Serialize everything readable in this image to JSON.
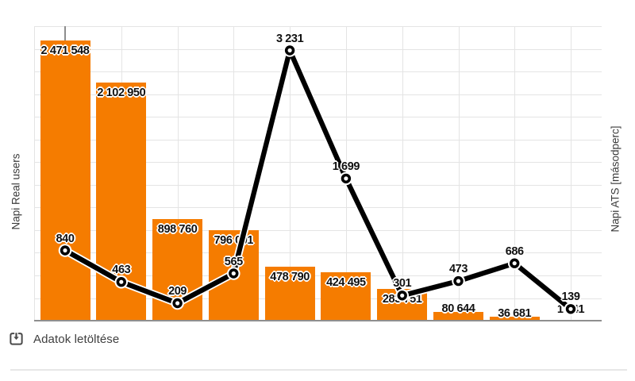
{
  "chart": {
    "left_axis_title": "Napi Real users",
    "right_axis_title": "Napi ATS [másodperc]",
    "download_label": "Adatok letöltése",
    "colors": {
      "bar": "#F57C00",
      "line": "#000000",
      "grid": "#e4e4e4",
      "axis_line": "#8f8f8f",
      "label_text": "#111111",
      "muted_text": "#3f3f3f"
    }
  },
  "chart_data": {
    "type": "bar",
    "combo": true,
    "x_count": 10,
    "categories": [
      "",
      "",
      "",
      "",
      "",
      "",
      "",
      "",
      "",
      ""
    ],
    "series": [
      {
        "name": "Napi Real users",
        "kind": "bar",
        "axis": "left",
        "color": "#F57C00",
        "values": [
          2471548,
          2102950,
          898760,
          796001,
          478790,
          424495,
          283751,
          80644,
          36681,
          1941
        ],
        "labels": [
          "2 471 548",
          "2 102 950",
          "898 760",
          "796 001",
          "478 790",
          "424 495",
          "283 751",
          "80 644",
          "36 681",
          "1 941"
        ]
      },
      {
        "name": "Napi ATS [másodperc]",
        "kind": "line",
        "axis": "right",
        "color": "#000000",
        "values": [
          840,
          463,
          209,
          565,
          3231,
          1699,
          301,
          473,
          686,
          139
        ],
        "labels": [
          "840",
          "463",
          "209",
          "565",
          "3 231",
          "1 699",
          "301",
          "473",
          "686",
          "139"
        ]
      }
    ],
    "ylabel_left": "Napi Real users",
    "ylabel_right": "Napi ATS [másodperc]",
    "ylim_left": [
      0,
      2600000
    ],
    "ylim_right": [
      0,
      3520
    ],
    "grid": true,
    "legend": "none"
  }
}
